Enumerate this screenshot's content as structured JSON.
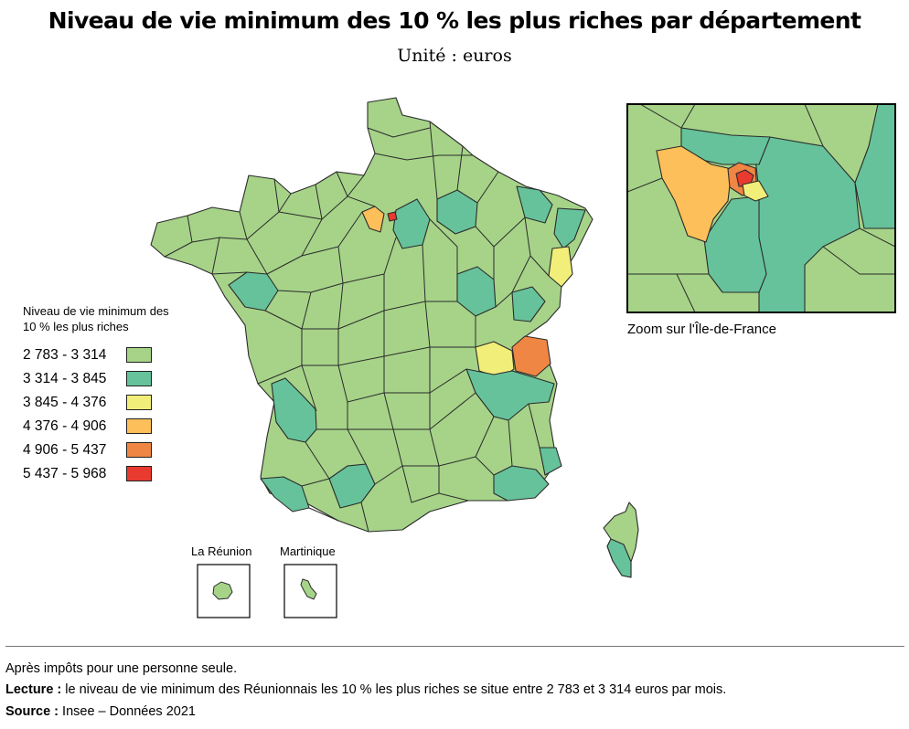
{
  "title": "Niveau de vie minimum des 10 % les plus riches par département",
  "subtitle": "Unité : euros",
  "legend": {
    "title_line1": "Niveau de vie minimum des",
    "title_line2": "10 % les plus riches",
    "classes": [
      {
        "label": "2 783 - 3 314",
        "color": "#a6d388"
      },
      {
        "label": "3 314 - 3 845",
        "color": "#66c29a"
      },
      {
        "label": "3 845 - 4 376",
        "color": "#f2ee7a"
      },
      {
        "label": "4 376 - 4 906",
        "color": "#fdbf59"
      },
      {
        "label": "4 906 - 5 437",
        "color": "#f08644"
      },
      {
        "label": "5 437 - 5 968",
        "color": "#e83a2f"
      }
    ]
  },
  "insets": {
    "reunion": "La Réunion",
    "martinique": "Martinique",
    "idf_caption": "Zoom sur l'Île-de-France"
  },
  "footer": {
    "note": "Après impôts pour une personne seule.",
    "lecture_label": "Lecture :",
    "lecture_text": " le niveau de vie minimum des Réunionnais les 10 % les plus riches se situe entre 2 783 et 3 314 euros par mois.",
    "source_label": "Source :",
    "source_text": " Insee – Données 2021"
  }
}
